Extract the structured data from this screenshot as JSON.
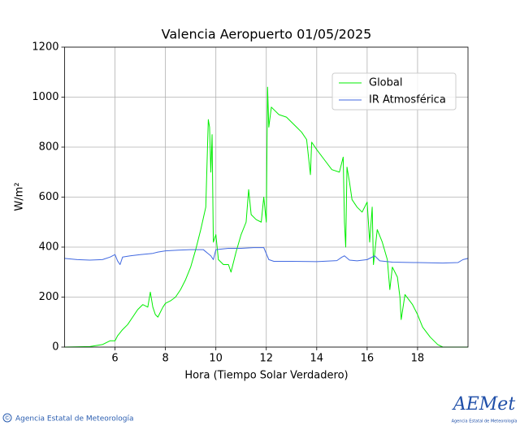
{
  "chart_data": {
    "type": "line",
    "title": "Valencia Aeropuerto 01/05/2025",
    "xlabel": "Hora (Tiempo Solar Verdadero)",
    "ylabel": "W/m²",
    "xlim": [
      4,
      20
    ],
    "xticks": [
      6,
      8,
      10,
      12,
      14,
      16,
      18
    ],
    "ylim": [
      0,
      1200
    ],
    "yticks": [
      0,
      200,
      400,
      600,
      800,
      1000,
      1200
    ],
    "grid": true,
    "legend": "upper right",
    "series": [
      {
        "name": "Global",
        "color": "#00ee00",
        "x": [
          4.0,
          5.0,
          5.5,
          5.8,
          6.0,
          6.1,
          6.3,
          6.5,
          6.7,
          6.9,
          7.1,
          7.3,
          7.4,
          7.5,
          7.6,
          7.7,
          7.9,
          8.0,
          8.2,
          8.4,
          8.6,
          8.8,
          9.0,
          9.2,
          9.4,
          9.6,
          9.7,
          9.75,
          9.8,
          9.85,
          9.9,
          10.0,
          10.1,
          10.3,
          10.5,
          10.6,
          10.8,
          11.0,
          11.2,
          11.3,
          11.4,
          11.6,
          11.8,
          11.9,
          12.0,
          12.05,
          12.1,
          12.2,
          12.5,
          12.8,
          13.0,
          13.2,
          13.4,
          13.6,
          13.75,
          13.8,
          14.0,
          14.3,
          14.6,
          14.9,
          15.05,
          15.1,
          15.15,
          15.2,
          15.3,
          15.4,
          15.6,
          15.8,
          16.0,
          16.1,
          16.2,
          16.25,
          16.4,
          16.6,
          16.8,
          16.9,
          17.0,
          17.2,
          17.3,
          17.35,
          17.5,
          17.8,
          18.0,
          18.2,
          18.5,
          18.8,
          19.0,
          20.0
        ],
        "values": [
          0,
          2,
          10,
          25,
          25,
          45,
          70,
          90,
          120,
          150,
          170,
          160,
          220,
          160,
          130,
          120,
          160,
          175,
          185,
          200,
          230,
          270,
          320,
          390,
          470,
          560,
          910,
          880,
          700,
          850,
          420,
          450,
          350,
          330,
          330,
          300,
          380,
          450,
          500,
          630,
          530,
          510,
          500,
          600,
          500,
          1040,
          880,
          960,
          930,
          920,
          900,
          880,
          860,
          830,
          690,
          820,
          790,
          750,
          710,
          700,
          760,
          500,
          400,
          720,
          660,
          590,
          560,
          540,
          580,
          420,
          560,
          330,
          470,
          420,
          350,
          230,
          320,
          280,
          200,
          110,
          210,
          170,
          130,
          80,
          40,
          10,
          0,
          0
        ]
      },
      {
        "name": "IR Atmosférica",
        "color": "#4169e1",
        "x": [
          4.0,
          4.5,
          5.0,
          5.5,
          5.8,
          6.0,
          6.1,
          6.2,
          6.3,
          6.6,
          7.0,
          7.5,
          7.7,
          8.0,
          8.5,
          9.0,
          9.5,
          9.8,
          9.9,
          10.0,
          10.5,
          11.0,
          11.5,
          11.9,
          12.1,
          12.3,
          13.0,
          14.0,
          14.8,
          15.0,
          15.1,
          15.3,
          15.6,
          16.0,
          16.3,
          16.5,
          17.0,
          18.0,
          19.0,
          19.6,
          19.8,
          20.0
        ],
        "values": [
          355,
          350,
          348,
          350,
          360,
          370,
          345,
          330,
          360,
          365,
          370,
          375,
          380,
          385,
          388,
          390,
          390,
          365,
          350,
          390,
          395,
          395,
          398,
          398,
          350,
          343,
          343,
          342,
          346,
          360,
          365,
          348,
          345,
          350,
          365,
          345,
          340,
          338,
          336,
          338,
          350,
          355
        ]
      }
    ]
  },
  "footer": {
    "symbol": "©",
    "credit": "Agencia Estatal de Meteorología",
    "logo": "AEMet",
    "logo_caption": "Agencia Estatal de Meteorología"
  }
}
